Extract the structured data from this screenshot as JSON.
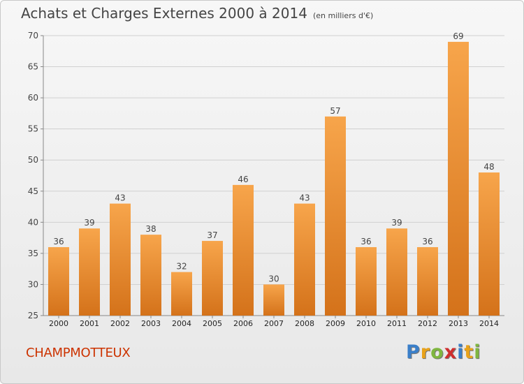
{
  "title": "Achats et Charges Externes 2000 à 2014",
  "subtitle": "(en milliers d'€)",
  "town": "CHAMPMOTTEUX",
  "logo": {
    "text": "Proxiti",
    "letters": [
      "P",
      "r",
      "o",
      "x",
      "i",
      "t",
      "i"
    ],
    "colors": [
      "#3a7fc9",
      "#e8a21a",
      "#7fb640",
      "#cf2e2e",
      "#3a7fc9",
      "#e8a21a",
      "#7fb640"
    ]
  },
  "colors": {
    "bar_top": "#f7a54b",
    "bar_bottom": "#d4721a",
    "town": "#cc3300"
  },
  "chart_data": {
    "type": "bar",
    "title": "Achats et Charges Externes 2000 à 2014",
    "subtitle": "(en milliers d'€)",
    "categories": [
      "2000",
      "2001",
      "2002",
      "2003",
      "2004",
      "2005",
      "2006",
      "2007",
      "2008",
      "2009",
      "2010",
      "2011",
      "2012",
      "2013",
      "2014"
    ],
    "values": [
      36,
      39,
      43,
      38,
      32,
      37,
      46,
      30,
      43,
      57,
      36,
      39,
      36,
      69,
      48
    ],
    "ylim": [
      25,
      70
    ],
    "yticks": [
      25,
      30,
      35,
      40,
      45,
      50,
      55,
      60,
      65,
      70
    ],
    "grid": true,
    "data_labels": true
  }
}
